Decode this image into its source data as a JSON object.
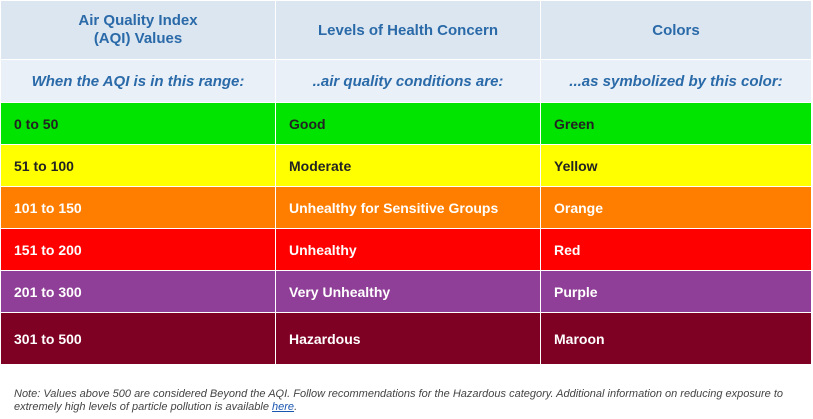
{
  "header": {
    "columns": [
      "Air Quality Index (AQI) Values",
      "Levels of Health Concern",
      "Colors"
    ],
    "subtitles": [
      "When the AQI is in this range:",
      "..air quality conditions are:",
      "...as symbolized by this color:"
    ]
  },
  "table": {
    "rows": [
      [
        "0 to 50",
        "Good",
        "Green"
      ],
      [
        "51 to 100",
        "Moderate",
        "Yellow"
      ],
      [
        "101 to 150",
        "Unhealthy for Sensitive Groups",
        "Orange"
      ],
      [
        "151 to 200",
        "Unhealthy",
        "Red"
      ],
      [
        "201 to 300",
        "Very Unhealthy",
        "Purple"
      ],
      [
        "301 to 500",
        "Hazardous",
        "Maroon"
      ]
    ]
  },
  "note": {
    "text": "Note: Values above 500 are considered Beyond the AQI. Follow recommendations for the Hazardous category. Additional information on reducing exposure to extremely high levels of particle pollution is available ",
    "link": "here",
    "end": "."
  }
}
